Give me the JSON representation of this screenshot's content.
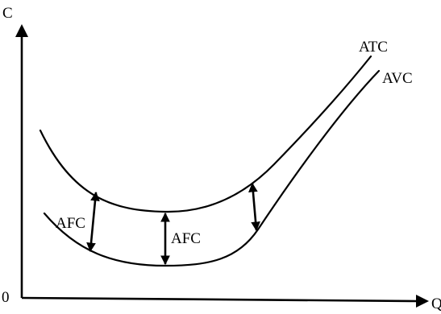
{
  "axes": {
    "y_label": "C",
    "x_label": "Q",
    "origin_label": "0"
  },
  "curves": {
    "atc_label": "ATC",
    "avc_label": "AVC"
  },
  "gaps": {
    "label_left": "AFC",
    "label_middle": "AFC"
  },
  "colors": {
    "ink": "#000000",
    "background": "#ffffff"
  }
}
